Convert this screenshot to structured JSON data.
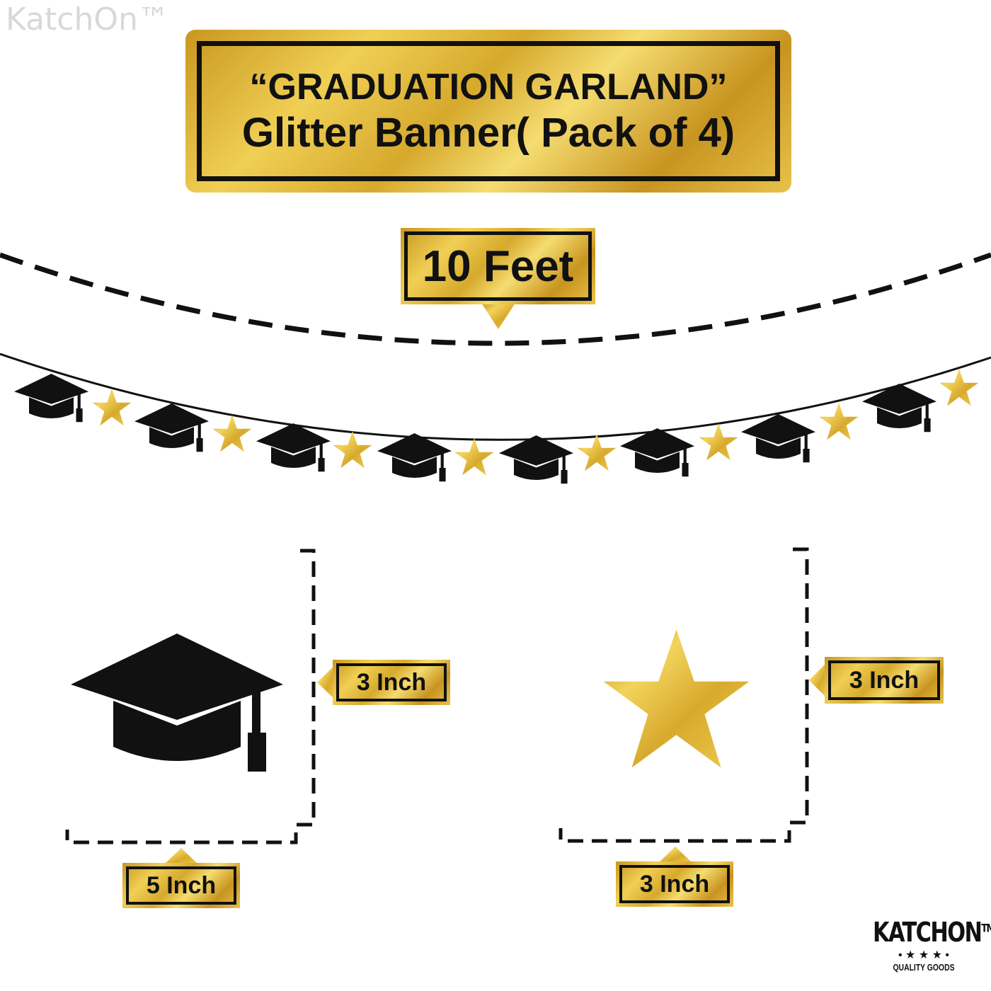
{
  "watermark": "KatchOn™",
  "title": {
    "line1": "“GRADUATION GARLAND”",
    "line2": "Glitter Banner( Pack of 4)"
  },
  "length_label": "10 Feet",
  "cap_height_label": "3 Inch",
  "cap_width_label": "5 Inch",
  "star_height_label": "3 Inch",
  "star_width_label": "3 Inch",
  "logo": {
    "brand": "KATCHON",
    "tm": "TM",
    "stars": "• ★ ★ ★ •",
    "tagline": "QUALITY GOODS"
  },
  "colors": {
    "gold": "#e0b83c",
    "black": "#111111"
  }
}
